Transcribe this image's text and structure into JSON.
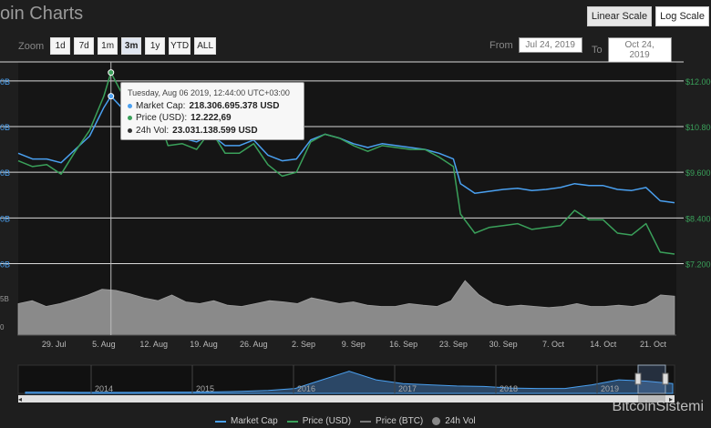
{
  "title": "oin Charts",
  "scale_buttons": [
    {
      "label": "Linear Scale",
      "active": true
    },
    {
      "label": "Log Scale",
      "active": false
    }
  ],
  "zoom": {
    "label": "Zoom",
    "buttons": [
      "1d",
      "7d",
      "1m",
      "3m",
      "1y",
      "YTD",
      "ALL"
    ],
    "active": "3m"
  },
  "range": {
    "from_label": "From",
    "from_value": "Jul 24, 2019",
    "to_label": "To",
    "to_value": "Oct 24, 2019"
  },
  "tooltip": {
    "header": "Tuesday, Aug 06 2019, 12:44:00 UTC+03:00",
    "rows": [
      {
        "label": "Market Cap:",
        "value": "218.306.695.378 USD",
        "color": "#4aa0f0"
      },
      {
        "label": "Price (USD):",
        "value": "12.222,69",
        "color": "#3aa05a"
      },
      {
        "label": "24h Vol:",
        "value": "23.031.138.599 USD",
        "color": "#333333"
      }
    ]
  },
  "left_axis_labels": [
    "0B",
    "0B",
    "0B",
    "0B",
    "0B"
  ],
  "vol_axis_labels": [
    "5B",
    "0"
  ],
  "legend": [
    {
      "label": "Market Cap",
      "color": "#4aa0f0",
      "kind": "line"
    },
    {
      "label": "Price (USD)",
      "color": "#3aa05a",
      "kind": "line"
    },
    {
      "label": "Price (BTC)",
      "color": "#777777",
      "kind": "line"
    },
    {
      "label": "24h Vol",
      "color": "#888888",
      "kind": "circle"
    }
  ],
  "watermark": "BitcoinSistemi",
  "chart_data": {
    "type": "line",
    "x_tick_labels": [
      "29. Jul",
      "5. Aug",
      "12. Aug",
      "19. Aug",
      "26. Aug",
      "2. Sep",
      "9. Sep",
      "16. Sep",
      "23. Sep",
      "30. Sep",
      "7. Oct",
      "14. Oct",
      "21. Oct"
    ],
    "right_axis": {
      "labels": [
        "$12.000",
        "$10.800",
        "$9.600",
        "$8.400",
        "$7.200"
      ],
      "ylim": [
        6900,
        12500
      ]
    },
    "x_dates": [
      "2019-07-24",
      "2019-07-26",
      "2019-07-28",
      "2019-07-30",
      "2019-08-01",
      "2019-08-03",
      "2019-08-05",
      "2019-08-06",
      "2019-08-08",
      "2019-08-10",
      "2019-08-12",
      "2019-08-14",
      "2019-08-16",
      "2019-08-18",
      "2019-08-20",
      "2019-08-22",
      "2019-08-24",
      "2019-08-26",
      "2019-08-28",
      "2019-08-30",
      "2019-09-01",
      "2019-09-03",
      "2019-09-05",
      "2019-09-07",
      "2019-09-09",
      "2019-09-11",
      "2019-09-13",
      "2019-09-15",
      "2019-09-17",
      "2019-09-19",
      "2019-09-21",
      "2019-09-23",
      "2019-09-24",
      "2019-09-26",
      "2019-09-28",
      "2019-09-30",
      "2019-10-02",
      "2019-10-04",
      "2019-10-06",
      "2019-10-08",
      "2019-10-10",
      "2019-10-12",
      "2019-10-14",
      "2019-10-16",
      "2019-10-18",
      "2019-10-20",
      "2019-10-22",
      "2019-10-24"
    ],
    "series": [
      {
        "name": "Price (USD)",
        "color": "#3aa05a",
        "values": [
          9900,
          9750,
          9800,
          9550,
          10150,
          10700,
          11600,
          12222,
          11500,
          11300,
          11400,
          10300,
          10350,
          10200,
          10700,
          10100,
          10100,
          10350,
          9800,
          9500,
          9600,
          10400,
          10600,
          10500,
          10300,
          10150,
          10300,
          10250,
          10200,
          10200,
          10000,
          9750,
          8500,
          8000,
          8150,
          8200,
          8250,
          8100,
          8150,
          8200,
          8600,
          8350,
          8350,
          8000,
          7950,
          8250,
          7500,
          7450
        ]
      },
      {
        "name": "Market Cap",
        "color": "#4aa0f0",
        "values": [
          10100,
          9950,
          9950,
          9850,
          10200,
          10550,
          11300,
          11600,
          11200,
          11050,
          11100,
          10500,
          10500,
          10400,
          10600,
          10300,
          10300,
          10450,
          10050,
          9900,
          9950,
          10450,
          10600,
          10500,
          10350,
          10250,
          10350,
          10300,
          10250,
          10200,
          10100,
          9950,
          9300,
          9050,
          9100,
          9150,
          9180,
          9120,
          9150,
          9200,
          9300,
          9250,
          9250,
          9150,
          9120,
          9200,
          8850,
          8800
        ]
      }
    ],
    "volume": {
      "name": "24h Vol",
      "values": [
        0.55,
        0.6,
        0.5,
        0.55,
        0.62,
        0.7,
        0.8,
        0.78,
        0.72,
        0.65,
        0.6,
        0.7,
        0.58,
        0.55,
        0.6,
        0.52,
        0.5,
        0.55,
        0.6,
        0.58,
        0.55,
        0.65,
        0.6,
        0.55,
        0.58,
        0.52,
        0.5,
        0.5,
        0.55,
        0.52,
        0.5,
        0.6,
        0.95,
        0.7,
        0.55,
        0.5,
        0.52,
        0.5,
        0.48,
        0.5,
        0.55,
        0.5,
        0.5,
        0.52,
        0.5,
        0.55,
        0.7,
        0.68
      ]
    },
    "navigator": {
      "year_labels": [
        "2014",
        "2015",
        "2016",
        "2017",
        "2018",
        "2019"
      ],
      "values": [
        0.05,
        0.05,
        0.04,
        0.04,
        0.04,
        0.05,
        0.05,
        0.06,
        0.08,
        0.12,
        0.2,
        0.55,
        0.9,
        0.55,
        0.4,
        0.35,
        0.3,
        0.28,
        0.22,
        0.2,
        0.2,
        0.35,
        0.55,
        0.5,
        0.4
      ]
    },
    "grid": true,
    "legend_position": "bottom"
  }
}
